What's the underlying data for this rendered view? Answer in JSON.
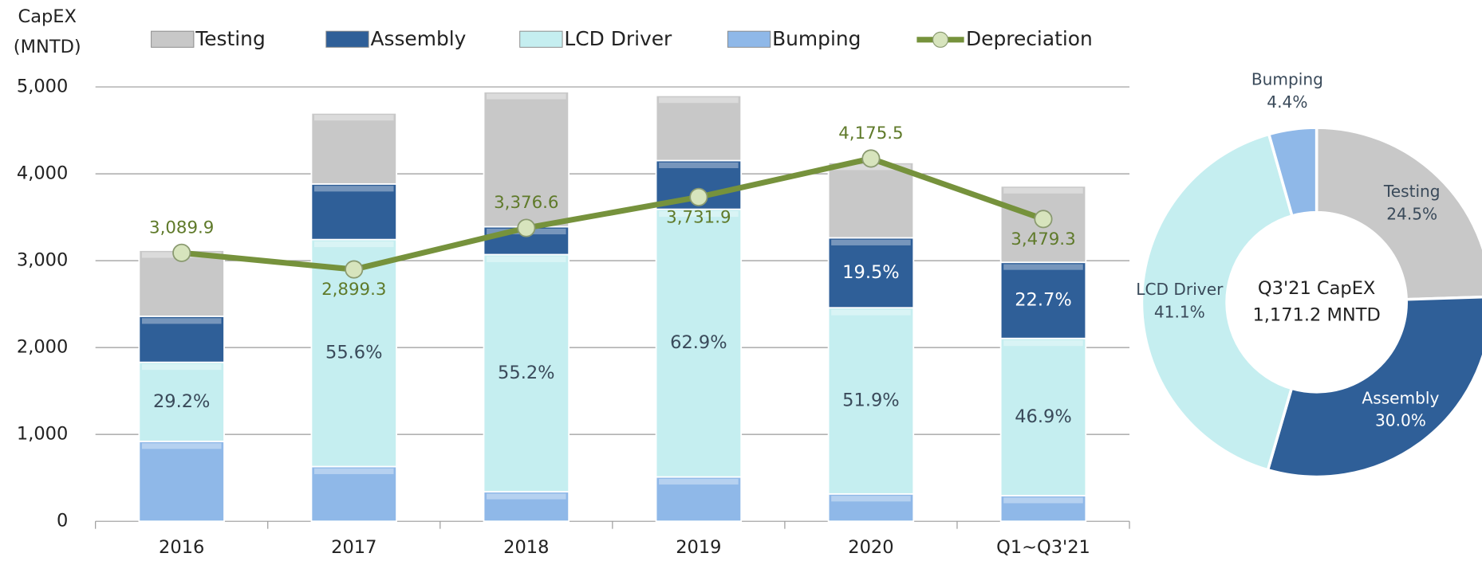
{
  "chart_data": [
    {
      "type": "stacked_bar_line",
      "ylabel_lines": [
        "CapEX",
        "(MNTD)"
      ],
      "categories": [
        "2016",
        "2017",
        "2018",
        "2019",
        "2020",
        "Q1~Q3'21"
      ],
      "ylim": [
        0,
        5000
      ],
      "yticks": [
        0,
        {
          "value": 1000,
          "label": "1,000"
        },
        {
          "value": 2000,
          "label": "2,000"
        },
        {
          "value": 3000,
          "label": "3,000"
        },
        {
          "value": 4000,
          "label": "4,000"
        },
        {
          "value": 5000,
          "label": "5,000"
        }
      ],
      "grid": true,
      "series": [
        {
          "name": "Bumping",
          "color": "#8fb8e8",
          "values": [
            920,
            630,
            340,
            510,
            315,
            295
          ]
        },
        {
          "name": "LCD Driver",
          "color": "#c5eef0",
          "values": [
            910,
            2613,
            2730,
            3082,
            2143,
            1810
          ],
          "percent_labels": [
            "29.2%",
            "55.6%",
            "55.2%",
            "62.9%",
            "51.9%",
            "46.9%"
          ]
        },
        {
          "name": "Assembly",
          "color": "#2f5f98",
          "values": [
            530,
            640,
            320,
            560,
            805,
            876
          ],
          "percent_labels": [
            null,
            null,
            null,
            null,
            "19.5%",
            "22.7%"
          ]
        },
        {
          "name": "Testing",
          "color": "#c8c8c8",
          "values": [
            760,
            817,
            1555,
            750,
            867,
            879
          ]
        }
      ],
      "line": {
        "name": "Depreciation",
        "color": "#76923c",
        "marker_color": "#d7e4bd",
        "values": [
          3089.9,
          2899.3,
          3376.6,
          3731.9,
          4175.5,
          3479.3
        ],
        "value_labels": [
          "3,089.9",
          "2,899.3",
          "3,376.6",
          "3,731.9",
          "4,175.5",
          "3,479.3"
        ]
      },
      "legend_order": [
        "Testing",
        "Assembly",
        "LCD Driver",
        "Bumping"
      ]
    },
    {
      "type": "donut",
      "title": "Q3'21 CapEX",
      "subtitle": "1,171.2 MNTD",
      "categories": [
        "Testing",
        "Assembly",
        "LCD Driver",
        "Bumping"
      ],
      "values": [
        24.5,
        30.0,
        41.1,
        4.4
      ],
      "value_labels": [
        "24.5%",
        "30.0%",
        "41.1%",
        "4.4%"
      ],
      "colors": [
        "#c8c8c8",
        "#2f5f98",
        "#c5eef0",
        "#8fb8e8"
      ]
    }
  ]
}
